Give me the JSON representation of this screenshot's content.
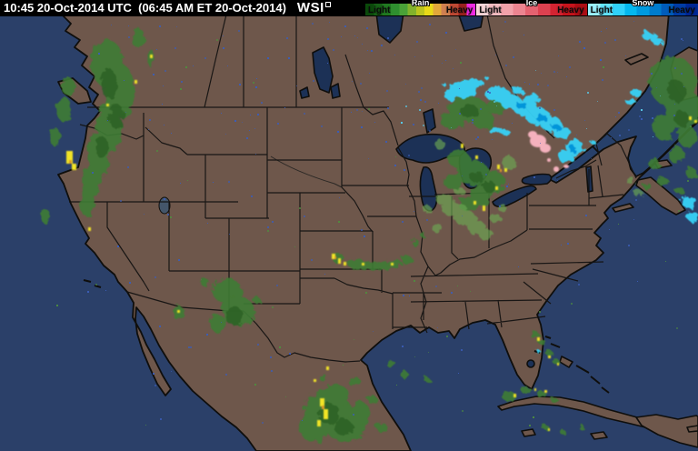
{
  "header": {
    "timestamp": "10:45 20-Oct-2014 UTC  (06:45 AM ET 20-Oct-2014)",
    "logo_text": "WSI",
    "legend": [
      {
        "id": "rain",
        "label": "Rain",
        "light_label": "Light",
        "heavy_label": "Heavy",
        "colors": [
          "#0b4a0b",
          "#166116",
          "#217a21",
          "#2f8f2f",
          "#4aa238",
          "#82b22c",
          "#bcc51e",
          "#e8da18",
          "#e2a83a",
          "#d08050",
          "#c04a34",
          "#98221e",
          "#ee2ae2"
        ]
      },
      {
        "id": "ice",
        "label": "Ice",
        "light_label": "Light",
        "heavy_label": "Heavy",
        "colors": [
          "#f9d7da",
          "#f6bdc2",
          "#f2a2aa",
          "#ec8490",
          "#e56270",
          "#dd4150",
          "#d42432",
          "#c8141c",
          "#ac0e14"
        ]
      },
      {
        "id": "snow",
        "label": "Snow",
        "light_label": "Light",
        "heavy_label": "Heavy",
        "colors": [
          "#9cf4ff",
          "#64e6ff",
          "#30d2fa",
          "#04b8ee",
          "#009ade",
          "#007ccc",
          "#005cba",
          "#003ca6",
          "#002694"
        ]
      }
    ]
  },
  "map": {
    "palette": {
      "ocean": "#2b4069",
      "land": "#6e574b",
      "lake": "#1c3156",
      "border": "#0f0e0c",
      "rain_echo_light": "#3f7d33",
      "rain_echo_dark": "#2d6128",
      "rain_echo_heavy": "#f2e428",
      "snow_echo": "#37d2f7",
      "ice_echo": "#f5b1bd"
    }
  }
}
